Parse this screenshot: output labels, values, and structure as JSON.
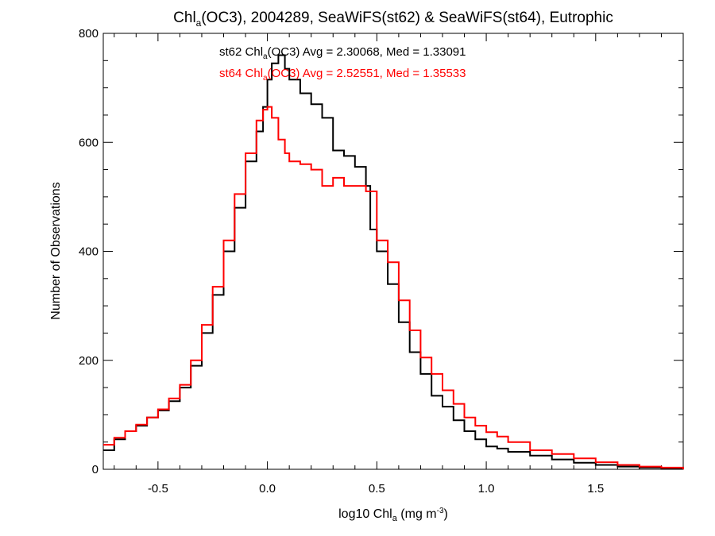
{
  "chart_data": {
    "type": "step",
    "title": "Chl",
    "title_sub": "a",
    "title_rest": "(OC3), 2004289, SeaWiFS(st62) & SeaWiFS(st64), Eutrophic",
    "xlabel": "log10 Chl",
    "xlabel_sub": "a",
    "xlabel_unit_pre": " (mg m",
    "xlabel_unit_sup": "-3",
    "xlabel_unit_post": ")",
    "ylabel": "Number of Observations",
    "xlim": [
      -0.75,
      1.9
    ],
    "ylim": [
      0,
      800
    ],
    "xticks": [
      -0.5,
      0.0,
      0.5,
      1.0,
      1.5
    ],
    "xtick_labels": [
      "-0.5",
      "0.0",
      "0.5",
      "1.0",
      "1.5"
    ],
    "yticks": [
      0,
      200,
      400,
      600,
      800
    ],
    "ytick_labels": [
      "0",
      "200",
      "400",
      "600",
      "800"
    ],
    "legend": [
      {
        "prefix": "st62 Chl",
        "sub": "a",
        "rest": "(OC3) Avg = 2.30068, Med = 1.33091",
        "color": "#000000"
      },
      {
        "prefix": "st64 Chl",
        "sub": "a",
        "rest": "(OC3) Avg = 2.52551, Med = 1.35533",
        "color": "#ff0000"
      }
    ],
    "series": [
      {
        "color": "#000000",
        "points": [
          [
            -0.75,
            35
          ],
          [
            -0.7,
            55
          ],
          [
            -0.65,
            70
          ],
          [
            -0.6,
            80
          ],
          [
            -0.55,
            95
          ],
          [
            -0.5,
            108
          ],
          [
            -0.45,
            125
          ],
          [
            -0.4,
            150
          ],
          [
            -0.35,
            190
          ],
          [
            -0.3,
            250
          ],
          [
            -0.25,
            320
          ],
          [
            -0.2,
            400
          ],
          [
            -0.15,
            480
          ],
          [
            -0.1,
            565
          ],
          [
            -0.05,
            620
          ],
          [
            -0.02,
            665
          ],
          [
            0.0,
            715
          ],
          [
            0.02,
            745
          ],
          [
            0.05,
            760
          ],
          [
            0.08,
            735
          ],
          [
            0.1,
            715
          ],
          [
            0.15,
            690
          ],
          [
            0.2,
            670
          ],
          [
            0.25,
            645
          ],
          [
            0.3,
            585
          ],
          [
            0.35,
            575
          ],
          [
            0.4,
            555
          ],
          [
            0.45,
            520
          ],
          [
            0.47,
            440
          ],
          [
            0.5,
            400
          ],
          [
            0.55,
            340
          ],
          [
            0.6,
            270
          ],
          [
            0.65,
            215
          ],
          [
            0.7,
            175
          ],
          [
            0.75,
            135
          ],
          [
            0.8,
            115
          ],
          [
            0.85,
            90
          ],
          [
            0.9,
            70
          ],
          [
            0.95,
            55
          ],
          [
            1.0,
            42
          ],
          [
            1.05,
            38
          ],
          [
            1.1,
            32
          ],
          [
            1.2,
            25
          ],
          [
            1.3,
            18
          ],
          [
            1.4,
            12
          ],
          [
            1.5,
            8
          ],
          [
            1.6,
            5
          ],
          [
            1.7,
            3
          ],
          [
            1.8,
            1
          ],
          [
            1.9,
            0
          ]
        ]
      },
      {
        "color": "#ff0000",
        "points": [
          [
            -0.75,
            45
          ],
          [
            -0.7,
            58
          ],
          [
            -0.65,
            70
          ],
          [
            -0.6,
            82
          ],
          [
            -0.55,
            95
          ],
          [
            -0.5,
            110
          ],
          [
            -0.45,
            130
          ],
          [
            -0.4,
            155
          ],
          [
            -0.35,
            200
          ],
          [
            -0.3,
            265
          ],
          [
            -0.25,
            335
          ],
          [
            -0.2,
            420
          ],
          [
            -0.15,
            505
          ],
          [
            -0.1,
            580
          ],
          [
            -0.05,
            640
          ],
          [
            -0.02,
            660
          ],
          [
            0.0,
            665
          ],
          [
            0.02,
            645
          ],
          [
            0.05,
            605
          ],
          [
            0.08,
            580
          ],
          [
            0.1,
            565
          ],
          [
            0.15,
            560
          ],
          [
            0.2,
            550
          ],
          [
            0.25,
            520
          ],
          [
            0.3,
            535
          ],
          [
            0.35,
            520
          ],
          [
            0.4,
            520
          ],
          [
            0.45,
            510
          ],
          [
            0.5,
            420
          ],
          [
            0.55,
            380
          ],
          [
            0.6,
            310
          ],
          [
            0.65,
            255
          ],
          [
            0.7,
            205
          ],
          [
            0.75,
            175
          ],
          [
            0.8,
            145
          ],
          [
            0.85,
            120
          ],
          [
            0.9,
            95
          ],
          [
            0.95,
            80
          ],
          [
            1.0,
            68
          ],
          [
            1.05,
            60
          ],
          [
            1.1,
            50
          ],
          [
            1.2,
            35
          ],
          [
            1.3,
            28
          ],
          [
            1.4,
            20
          ],
          [
            1.5,
            13
          ],
          [
            1.6,
            8
          ],
          [
            1.7,
            5
          ],
          [
            1.8,
            3
          ],
          [
            1.9,
            0
          ]
        ]
      }
    ]
  }
}
